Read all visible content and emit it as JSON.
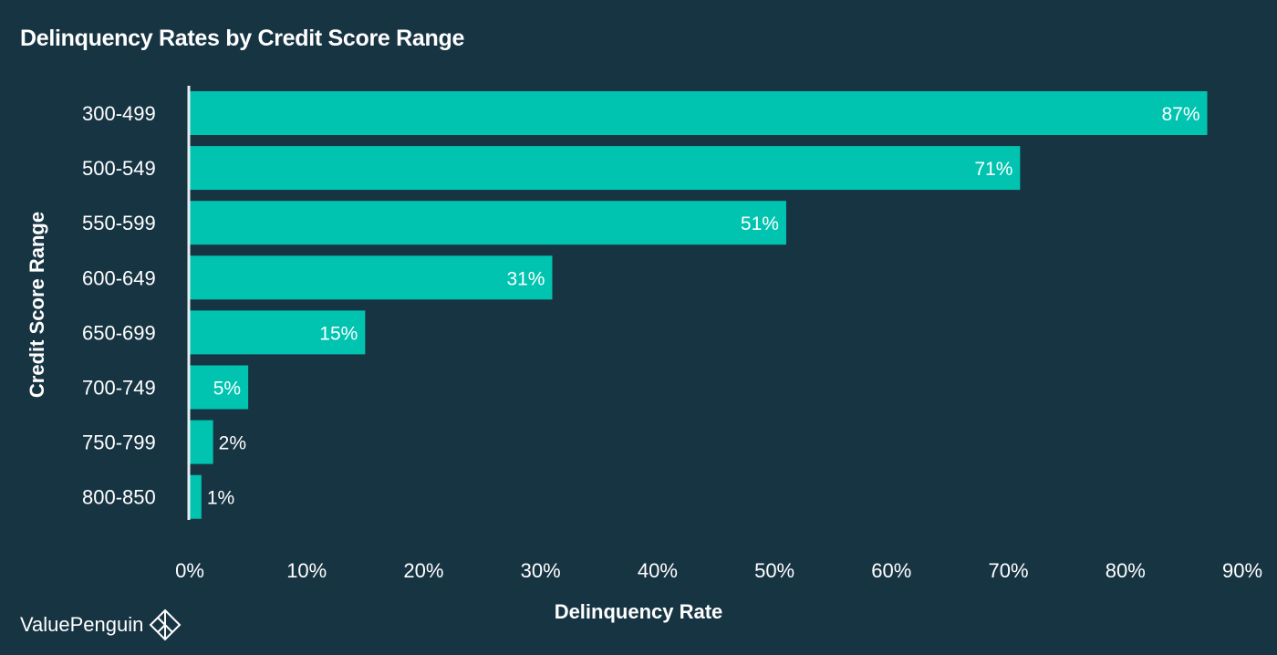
{
  "chart_data": {
    "type": "bar",
    "orientation": "horizontal",
    "title": "Delinquency Rates by Credit Score Range",
    "xlabel": "Delinquency Rate",
    "ylabel": "Credit Score Range",
    "categories": [
      "300-499",
      "500-549",
      "550-599",
      "600-649",
      "650-699",
      "700-749",
      "750-799",
      "800-850"
    ],
    "values": [
      87,
      71,
      51,
      31,
      15,
      5,
      2,
      1
    ],
    "value_labels": [
      "87%",
      "71%",
      "51%",
      "31%",
      "15%",
      "5%",
      "2%",
      "1%"
    ],
    "xlim": [
      0,
      90
    ],
    "xticks": [
      0,
      10,
      20,
      30,
      40,
      50,
      60,
      70,
      80,
      90
    ],
    "xtick_labels": [
      "0%",
      "10%",
      "20%",
      "30%",
      "40%",
      "50%",
      "60%",
      "70%",
      "80%",
      "90%"
    ],
    "grid": false,
    "legend": "none"
  },
  "colors": {
    "background": "#173443",
    "bar": "#00c4b0",
    "text": "#ffffff",
    "axis": "#e8eef0"
  },
  "brand": {
    "name": "ValuePenguin",
    "icon": "valuepenguin-logo-icon"
  }
}
